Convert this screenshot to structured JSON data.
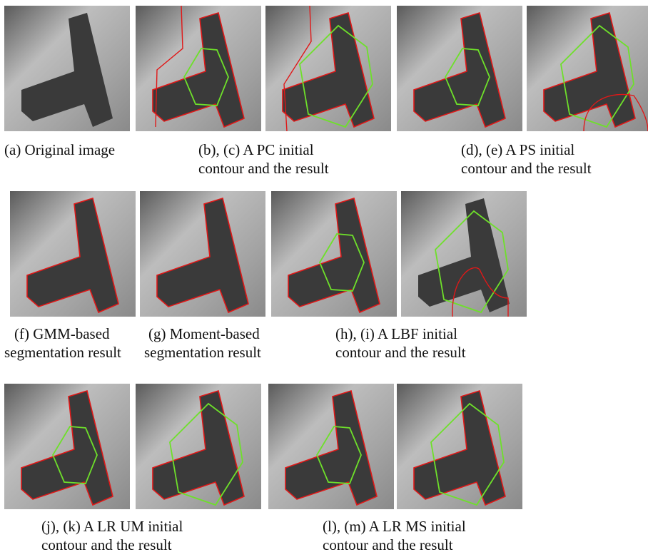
{
  "figure": {
    "captions": [
      {
        "lines": [
          "(a) Original image"
        ]
      },
      {
        "lines": [
          "(b), (c) A PC initial",
          "contour and the result"
        ]
      },
      {
        "lines": [
          "(d), (e) A PS initial",
          "contour and the result"
        ]
      },
      {
        "lines": [
          "(f) GMM-based",
          "segmentation result"
        ]
      },
      {
        "lines": [
          "(g) Moment-based",
          "segmentation result"
        ]
      },
      {
        "lines": [
          "(h), (i) A LBF initial",
          "contour and the result"
        ]
      },
      {
        "lines": [
          "(j), (k) A LR UM initial",
          "contour and the result"
        ]
      },
      {
        "lines": [
          "(l), (m) A LR MS initial",
          "contour and the result"
        ]
      }
    ]
  }
}
